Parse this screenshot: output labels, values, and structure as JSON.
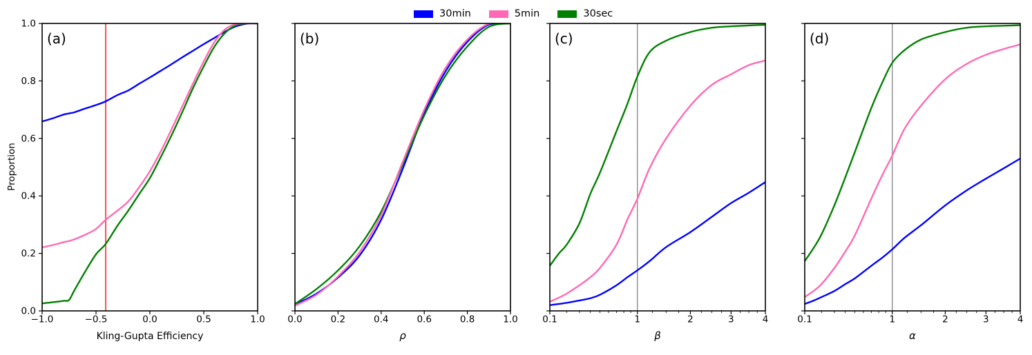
{
  "figure": {
    "background": "#ffffff"
  },
  "legend": {
    "items": [
      {
        "label": "30min",
        "color": "#0000ff"
      },
      {
        "label": "5min",
        "color": "#ff69b4"
      },
      {
        "label": "30sec",
        "color": "#008000"
      }
    ]
  },
  "chart_data": {
    "type": "line",
    "ylabel": "Proportion",
    "ylim": [
      0,
      1
    ],
    "yticks": [
      0.0,
      0.2,
      0.4,
      0.6,
      0.8,
      1.0
    ],
    "ytick_labels": [
      "0.0",
      "0.2",
      "0.4",
      "0.6",
      "0.8",
      "1.0"
    ],
    "legend_position": "top-center",
    "grid": false,
    "series_colors": {
      "30min": "#0000ff",
      "5min": "#ff69b4",
      "30sec": "#008000"
    },
    "panels": [
      {
        "id": "a",
        "tag": "(a)",
        "xlabel": "Kling-Gupta Efficiency",
        "xlabel_italic": false,
        "xscale": "linear",
        "xlim": [
          -1.0,
          1.0
        ],
        "xticks": [
          -1.0,
          -0.5,
          0.0,
          0.5,
          1.0
        ],
        "xtick_labels": [
          "−1.0",
          "−0.5",
          "0.0",
          "0.5",
          "1.0"
        ],
        "xminor": [],
        "show_ytick_labels": true,
        "vline": {
          "x": -0.41,
          "color": "#ff0000"
        },
        "x": [
          -1.0,
          -0.9,
          -0.8,
          -0.75,
          -0.7,
          -0.6,
          -0.5,
          -0.41,
          -0.3,
          -0.2,
          -0.1,
          0.0,
          0.1,
          0.2,
          0.3,
          0.4,
          0.5,
          0.6,
          0.7,
          0.8,
          0.9,
          1.0
        ],
        "series": [
          {
            "name": "30min",
            "y": [
              0.659,
              0.67,
              0.683,
              0.687,
              0.691,
              0.704,
              0.716,
              0.729,
              0.751,
              0.767,
              0.79,
              0.812,
              0.835,
              0.858,
              0.882,
              0.905,
              0.928,
              0.95,
              0.972,
              0.99,
              0.999,
              1.0
            ]
          },
          {
            "name": "30sec",
            "y": [
              0.026,
              0.03,
              0.035,
              0.038,
              0.072,
              0.137,
              0.197,
              0.233,
              0.297,
              0.349,
              0.406,
              0.462,
              0.534,
              0.61,
              0.691,
              0.775,
              0.851,
              0.92,
              0.968,
              0.994,
              1.0,
              1.0
            ]
          },
          {
            "name": "5min",
            "y": [
              0.221,
              0.229,
              0.239,
              0.243,
              0.249,
              0.265,
              0.285,
              0.317,
              0.349,
              0.381,
              0.43,
              0.486,
              0.554,
              0.631,
              0.711,
              0.791,
              0.868,
              0.936,
              0.98,
              0.998,
              1.0,
              1.0
            ]
          }
        ]
      },
      {
        "id": "b",
        "tag": "(b)",
        "xlabel": "ρ",
        "xlabel_italic": true,
        "xscale": "linear",
        "xlim": [
          0.0,
          1.0
        ],
        "xticks": [
          0.0,
          0.2,
          0.4,
          0.6,
          0.8,
          1.0
        ],
        "xtick_labels": [
          "0.0",
          "0.2",
          "0.4",
          "0.6",
          "0.8",
          "1.0"
        ],
        "xminor": [],
        "show_ytick_labels": false,
        "vline": null,
        "x": [
          0.0,
          0.1,
          0.2,
          0.3,
          0.4,
          0.5,
          0.6,
          0.7,
          0.8,
          0.9,
          1.0
        ],
        "series": [
          {
            "name": "30min",
            "y": [
              0.022,
              0.06,
              0.116,
              0.193,
              0.317,
              0.494,
              0.687,
              0.835,
              0.936,
              0.996,
              1.0
            ]
          },
          {
            "name": "30sec",
            "y": [
              0.024,
              0.076,
              0.141,
              0.225,
              0.345,
              0.51,
              0.68,
              0.82,
              0.92,
              0.988,
              1.0
            ]
          },
          {
            "name": "5min",
            "y": [
              0.018,
              0.056,
              0.12,
              0.205,
              0.333,
              0.518,
              0.7,
              0.847,
              0.944,
              0.999,
              1.0
            ]
          }
        ]
      },
      {
        "id": "c",
        "tag": "(c)",
        "xlabel": "β",
        "xlabel_italic": true,
        "xscale": "sqrt",
        "xlim": [
          0.1,
          4.0
        ],
        "xticks": [
          0.1,
          1,
          2,
          3,
          4
        ],
        "xtick_labels": [
          "0.1",
          "1",
          "2",
          "3",
          "4"
        ],
        "xminor": [
          0.2,
          0.3,
          0.4,
          0.5,
          0.6,
          0.7,
          0.8,
          0.9,
          1.25,
          1.5,
          1.75,
          2.25,
          2.5,
          2.75,
          3.25,
          3.5,
          3.75
        ],
        "show_ytick_labels": false,
        "vline": {
          "x": 1.0,
          "color": "#8c8c8c"
        },
        "x": [
          0.1,
          0.15,
          0.2,
          0.3,
          0.4,
          0.5,
          0.7,
          0.85,
          1.0,
          1.2,
          1.5,
          2.0,
          2.5,
          3.0,
          3.5,
          4.0
        ],
        "series": [
          {
            "name": "30min",
            "y": [
              0.02,
              0.024,
              0.028,
              0.036,
              0.044,
              0.056,
              0.089,
              0.117,
              0.141,
              0.173,
              0.222,
              0.274,
              0.327,
              0.375,
              0.411,
              0.448
            ]
          },
          {
            "name": "30sec",
            "y": [
              0.157,
              0.2,
              0.23,
              0.305,
              0.407,
              0.48,
              0.625,
              0.72,
              0.815,
              0.9,
              0.94,
              0.97,
              0.985,
              0.99,
              0.993,
              0.995
            ]
          },
          {
            "name": "5min",
            "y": [
              0.032,
              0.046,
              0.06,
              0.089,
              0.117,
              0.149,
              0.23,
              0.318,
              0.39,
              0.496,
              0.6,
              0.714,
              0.786,
              0.823,
              0.855,
              0.871
            ]
          }
        ]
      },
      {
        "id": "d",
        "tag": "(d)",
        "xlabel": "α",
        "xlabel_italic": true,
        "xscale": "sqrt",
        "xlim": [
          0.1,
          4.0
        ],
        "xticks": [
          0.1,
          1,
          2,
          3,
          4
        ],
        "xtick_labels": [
          "0.1",
          "1",
          "2",
          "3",
          "4"
        ],
        "xminor": [
          0.2,
          0.3,
          0.4,
          0.5,
          0.6,
          0.7,
          0.8,
          0.9,
          1.25,
          1.5,
          1.75,
          2.25,
          2.5,
          2.75,
          3.25,
          3.5,
          3.75
        ],
        "show_ytick_labels": false,
        "vline": {
          "x": 1.0,
          "color": "#8c8c8c"
        },
        "x": [
          0.1,
          0.15,
          0.2,
          0.3,
          0.4,
          0.5,
          0.7,
          0.85,
          1.0,
          1.2,
          1.5,
          2.0,
          2.5,
          3.0,
          3.5,
          4.0
        ],
        "series": [
          {
            "name": "30min",
            "y": [
              0.024,
              0.036,
              0.048,
              0.069,
              0.093,
              0.113,
              0.157,
              0.185,
              0.214,
              0.254,
              0.298,
              0.367,
              0.419,
              0.46,
              0.496,
              0.53
            ]
          },
          {
            "name": "30sec",
            "y": [
              0.173,
              0.22,
              0.266,
              0.367,
              0.464,
              0.552,
              0.706,
              0.794,
              0.863,
              0.907,
              0.944,
              0.97,
              0.985,
              0.99,
              0.992,
              0.994
            ]
          },
          {
            "name": "5min",
            "y": [
              0.048,
              0.07,
              0.093,
              0.149,
              0.206,
              0.262,
              0.391,
              0.472,
              0.54,
              0.633,
              0.714,
              0.806,
              0.859,
              0.891,
              0.911,
              0.927
            ]
          }
        ]
      }
    ]
  }
}
